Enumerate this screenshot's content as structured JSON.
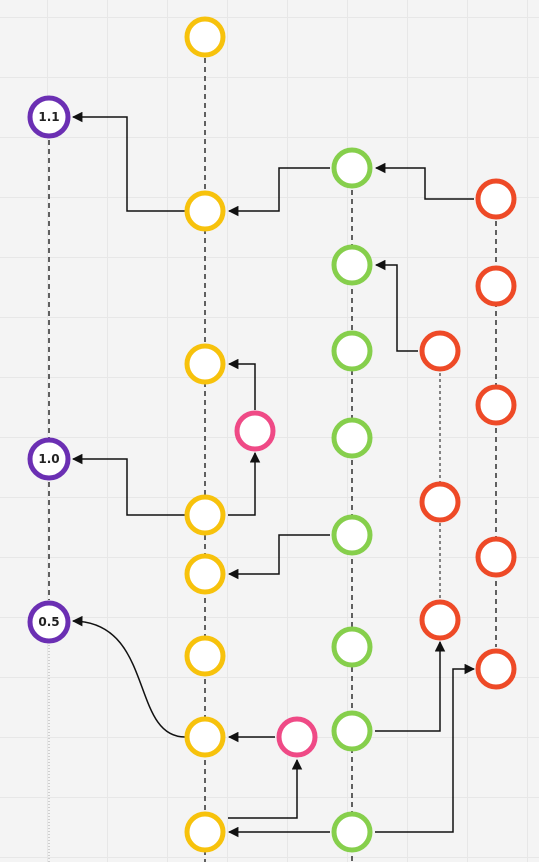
{
  "colors": {
    "purple": "#6b2fb3",
    "yellow": "#f7c20c",
    "green": "#86cf4c",
    "pink": "#ef4a86",
    "red": "#ee4a27",
    "arrow": "#111111"
  },
  "release_labels": {
    "v11": "1.1",
    "v10": "1.0",
    "v05": "0.5"
  }
}
